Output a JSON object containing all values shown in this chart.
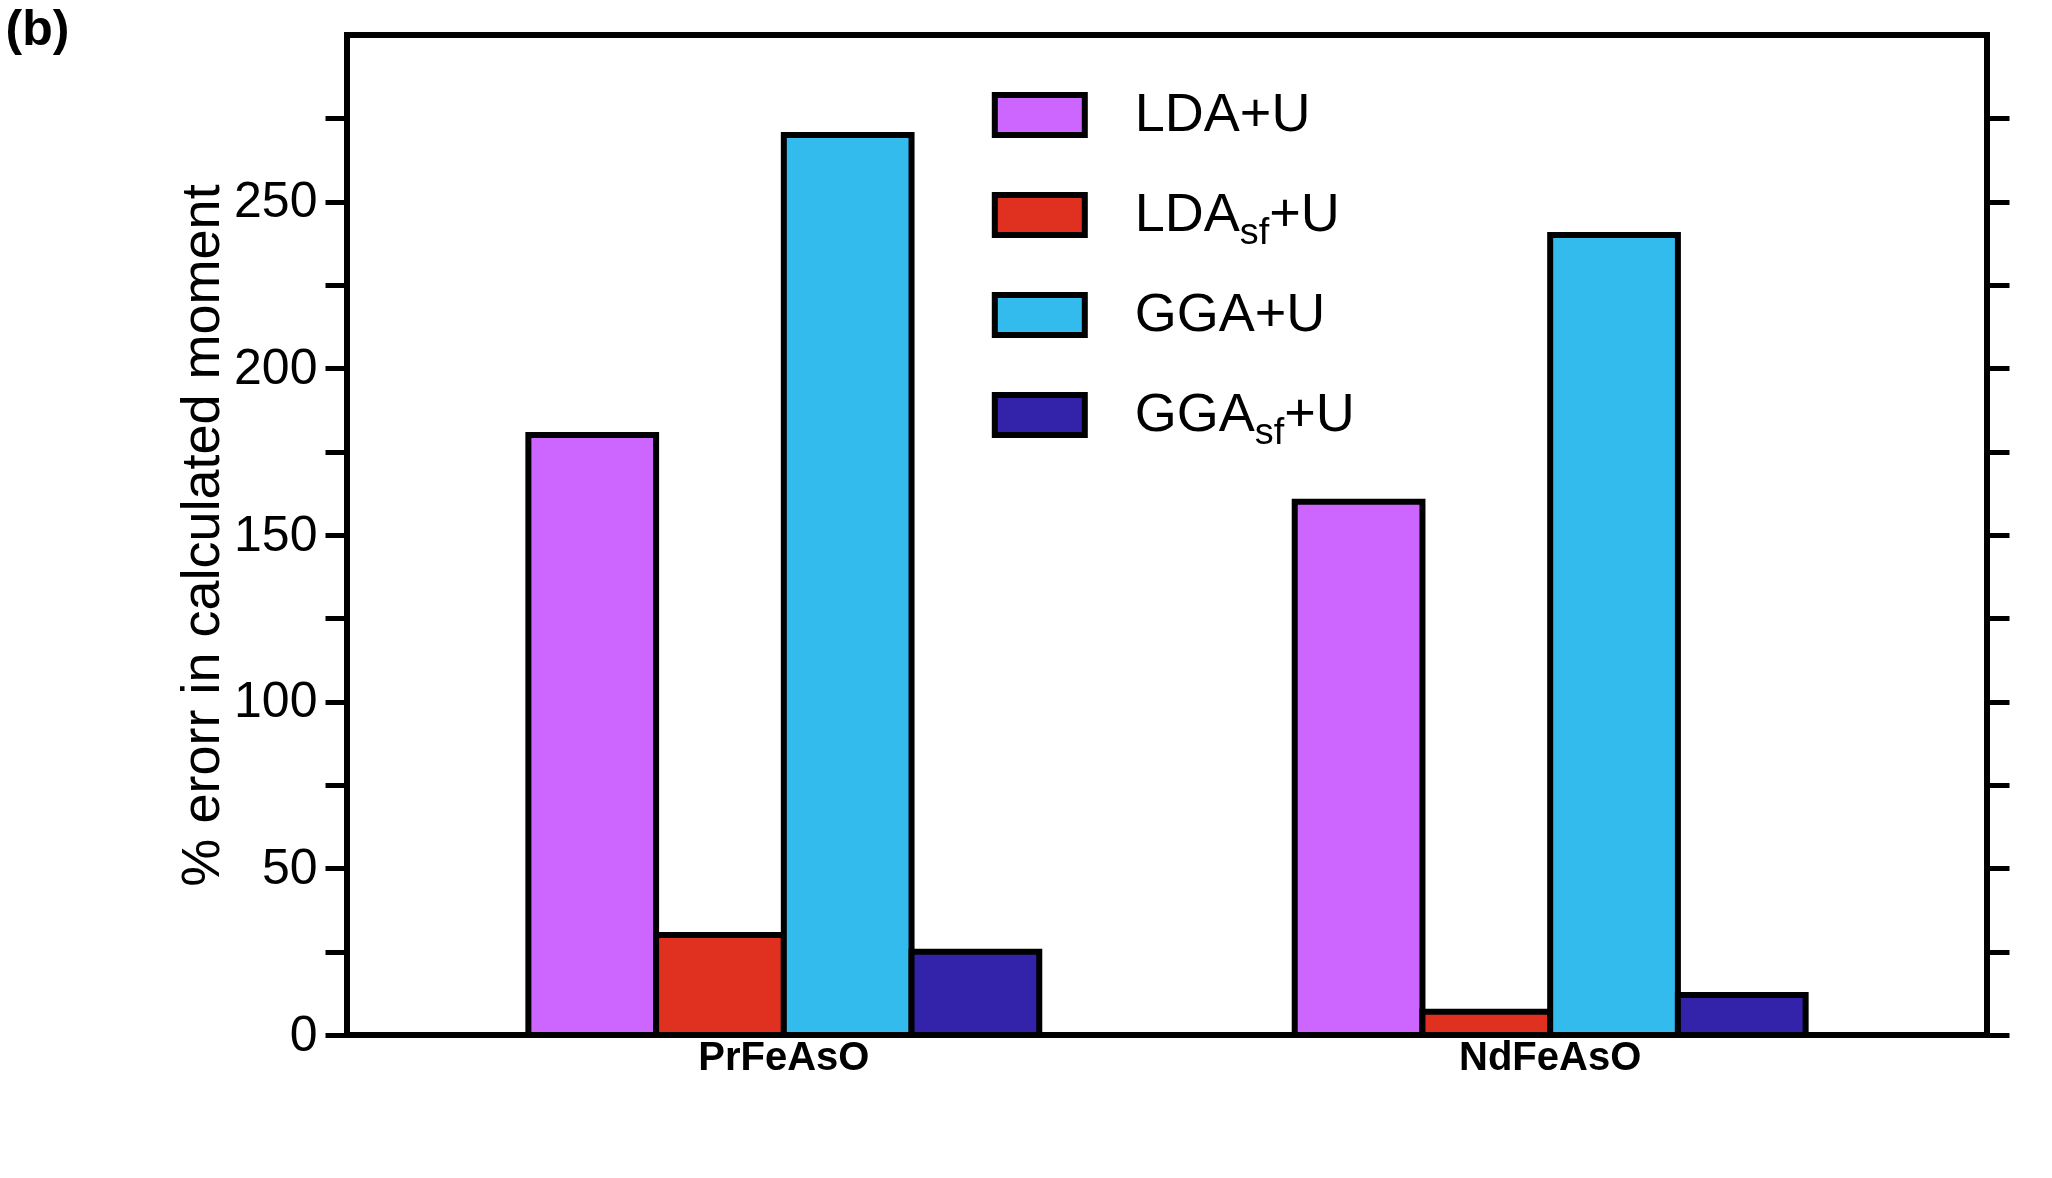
{
  "chart_data": {
    "type": "bar",
    "ylabel": "% erorr in calculated moment",
    "annotations": [
      "(b)"
    ],
    "categories": [
      "PrFeAsO",
      "NdFeAsO"
    ],
    "series": [
      {
        "name": "LDA+U",
        "color": "#cc66ff",
        "values": [
          180,
          160
        ]
      },
      {
        "name": "LDA$_{sf}$+U",
        "color": "#e03020",
        "values": [
          30,
          7
        ]
      },
      {
        "name": "GGA+U",
        "color": "#33bbee",
        "values": [
          270,
          240
        ]
      },
      {
        "name": "GGA$_{sf}$+U",
        "color": "#3322aa",
        "values": [
          25,
          12
        ]
      }
    ],
    "ylim": [
      0,
      300
    ],
    "yticks": [
      0,
      50,
      100,
      150,
      200,
      250
    ],
    "legend": "top",
    "grid": false
  }
}
